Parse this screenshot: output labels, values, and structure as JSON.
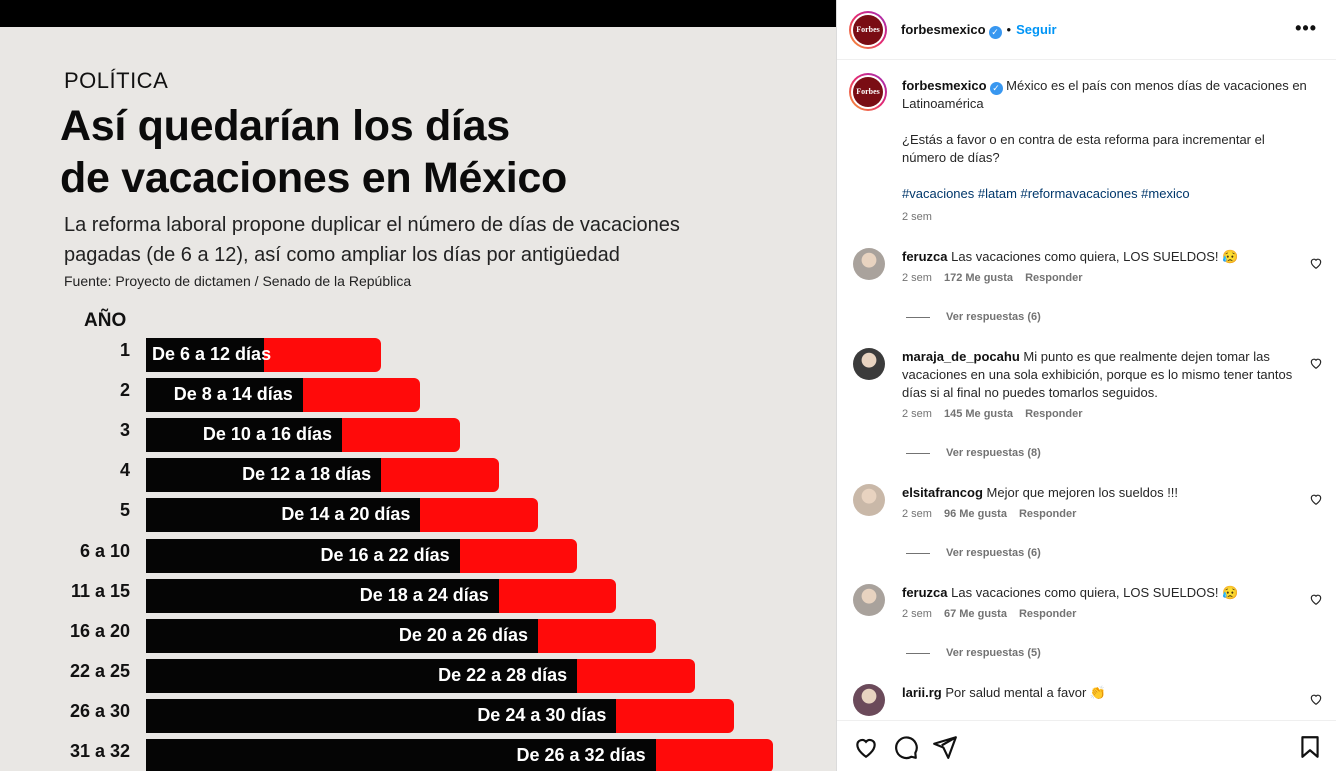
{
  "infographic": {
    "category": "POLÍTICA",
    "headline_line1": "Así quedarían los días",
    "headline_line2": "de vacaciones en México",
    "subtitle_line1": "La reforma laboral propone duplicar el número de días de vacaciones",
    "subtitle_line2": "pagadas (de 6 a 12), así como ampliar los días por antigüedad",
    "source": "Fuente: Proyecto de dictamen / Senado de la República",
    "axis_title": "AÑO",
    "colors": {
      "current_days": "#050505",
      "proposed_days": "#ff0a0a",
      "background": "#e9e7e4"
    }
  },
  "chart_data": {
    "type": "bar",
    "orientation": "horizontal",
    "ylabel": "AÑO",
    "categories": [
      "1",
      "2",
      "3",
      "4",
      "5",
      "6 a 10",
      "11 a 15",
      "16 a 20",
      "22 a 25",
      "26 a 30",
      "31 a 32"
    ],
    "series": [
      {
        "values": [
          6,
          8,
          10,
          12,
          14,
          16,
          18,
          20,
          22,
          24,
          26
        ]
      },
      {
        "values": [
          12,
          14,
          16,
          18,
          20,
          22,
          24,
          26,
          28,
          30,
          32
        ]
      }
    ],
    "data_labels": [
      "De 6 a 12 días",
      "De 8 a 14 días",
      "De 10 a 16 días",
      "De 12 a 18 días",
      "De 14 a 20 días",
      "De 16 a 22 días",
      "De 18 a 24 días",
      "De 20 a 26 días",
      "De 22 a 28 días",
      "De 24 a 30 días",
      "De 26 a 32 días"
    ]
  },
  "post": {
    "username": "forbesmexico",
    "follow_label": "Seguir",
    "more_icon": "more-horizontal-icon",
    "avatar_text": "Forbes",
    "caption_line1": "México es el país con menos días de vacaciones en Latinoamérica",
    "caption_line2": "¿Estás a favor o en contra de esta reforma para incrementar el número de días?",
    "hashtags": "#vacaciones #latam #reformavacaciones #mexico",
    "time": "2 sem"
  },
  "comments": [
    {
      "user": "feruzca",
      "text": "Las vacaciones como quiera, LOS SUELDOS! 😥",
      "time": "2 sem",
      "likes": "172 Me gusta",
      "reply": "Responder",
      "view_replies": "Ver respuestas (6)"
    },
    {
      "user": "maraja_de_pocahu",
      "text": "Mi punto es que realmente dejen tomar las vacaciones en una sola exhibición, porque es lo mismo tener tantos días si al final no puedes tomarlos seguidos.",
      "time": "2 sem",
      "likes": "145 Me gusta",
      "reply": "Responder",
      "view_replies": "Ver respuestas (8)"
    },
    {
      "user": "elsitafrancog",
      "text": "Mejor que mejoren los sueldos !!!",
      "time": "2 sem",
      "likes": "96 Me gusta",
      "reply": "Responder",
      "view_replies": "Ver respuestas (6)"
    },
    {
      "user": "feruzca",
      "text": "Las vacaciones como quiera, LOS SUELDOS! 😥",
      "time": "2 sem",
      "likes": "67 Me gusta",
      "reply": "Responder",
      "view_replies": "Ver respuestas (5)"
    },
    {
      "user": "larii.rg",
      "text": "Por salud mental a favor 👏",
      "time": "",
      "likes": "",
      "reply": "",
      "view_replies": ""
    }
  ],
  "actions": {
    "icons": [
      "heart-icon",
      "comment-icon",
      "share-icon",
      "bookmark-icon"
    ]
  }
}
